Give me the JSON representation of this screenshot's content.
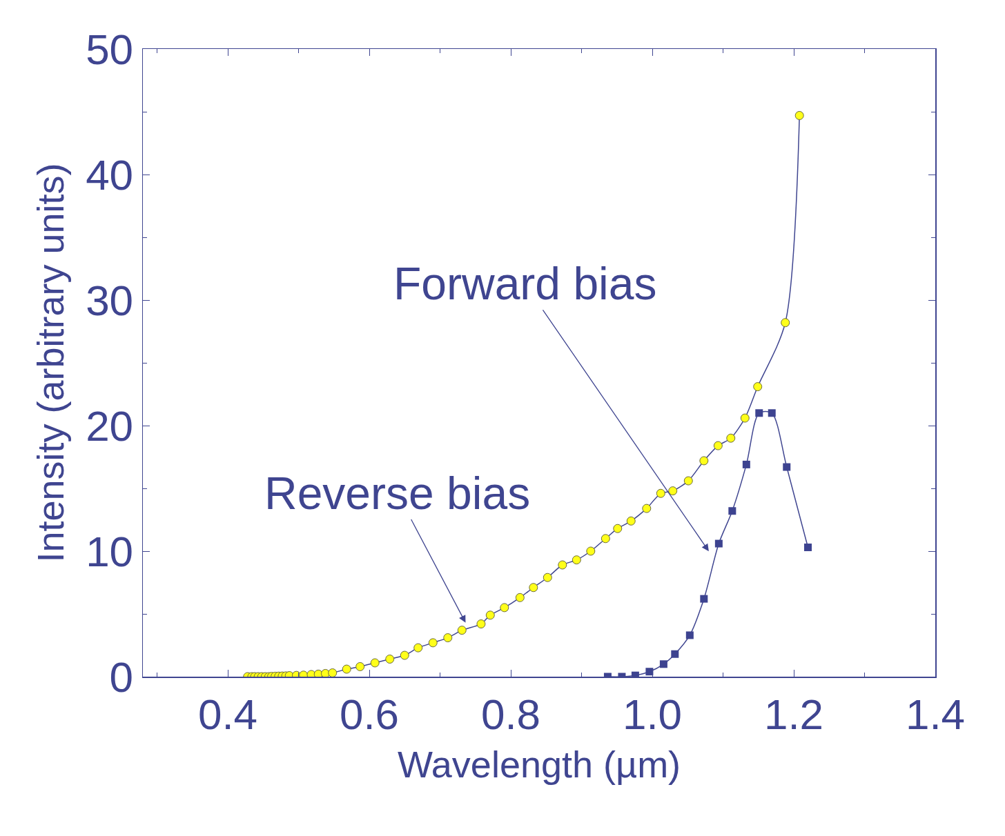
{
  "chart_data": {
    "type": "line",
    "x_label": "Wavelength (µm)",
    "y_label": "Intensity (arbitrary units)",
    "xlim": [
      0.28,
      1.4
    ],
    "xticks": [
      0.4,
      0.6,
      0.8,
      {
        "value": 1,
        "label": "1.0"
      },
      1.2,
      1.4
    ],
    "ylim": [
      0,
      50
    ],
    "yticks": [
      0,
      10,
      20,
      30,
      40,
      50
    ],
    "grid": false,
    "series": [
      {
        "name": "Reverse bias",
        "color": "#ffff1a",
        "marker": "circle",
        "line_style": "solid",
        "x": [
          0.428,
          0.434,
          0.438,
          0.443,
          0.448,
          0.453,
          0.458,
          0.462,
          0.467,
          0.472,
          0.477,
          0.482,
          0.487,
          0.497,
          0.507,
          0.518,
          0.528,
          0.538,
          0.548,
          0.568,
          0.587,
          0.608,
          0.629,
          0.65,
          0.669,
          0.69,
          0.711,
          0.731,
          0.758,
          0.771,
          0.791,
          0.813,
          0.832,
          0.852,
          0.873,
          0.893,
          0.913,
          0.934,
          0.951,
          0.97,
          0.992,
          1.012,
          1.029,
          1.051,
          1.073,
          1.093,
          1.111,
          1.131,
          1.149,
          1.188,
          1.208
        ],
        "values": [
          0,
          0,
          0,
          0,
          0,
          0,
          0,
          0.02,
          0.03,
          0.04,
          0.05,
          0.06,
          0.08,
          0.1,
          0.12,
          0.17,
          0.2,
          0.25,
          0.3,
          0.6,
          0.8,
          1.1,
          1.4,
          1.7,
          2.3,
          2.7,
          3.1,
          3.7,
          4.2,
          4.9,
          5.5,
          6.3,
          7.1,
          7.9,
          8.9,
          9.3,
          10.0,
          11.0,
          11.8,
          12.4,
          13.4,
          14.6,
          14.8,
          15.6,
          17.2,
          18.4,
          19.0,
          20.6,
          23.1,
          28.2,
          44.7
        ]
      },
      {
        "name": "Forward bias",
        "color": "#3d4390",
        "marker": "square",
        "line_style": "solid",
        "x": [
          0.937,
          0.957,
          0.976,
          0.996,
          1.016,
          1.032,
          1.053,
          1.073,
          1.094,
          1.113,
          1.133,
          1.151,
          1.169,
          1.19,
          1.22
        ],
        "values": [
          0,
          0,
          0.1,
          0.4,
          1.0,
          1.8,
          3.3,
          6.2,
          10.6,
          13.2,
          16.9,
          21.0,
          21.0,
          16.7,
          10.3
        ]
      }
    ],
    "annotations": [
      {
        "text": "Forward bias",
        "x": 1.081,
        "y": 9.9
      },
      {
        "text": "Reverse bias",
        "x": 0.737,
        "y": 4.2
      }
    ]
  }
}
